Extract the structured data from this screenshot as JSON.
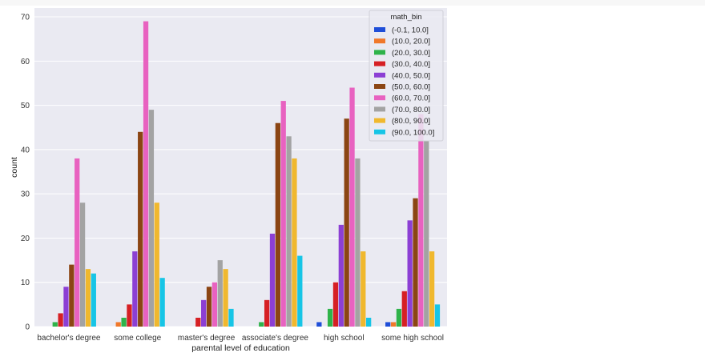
{
  "chart_data": {
    "type": "bar",
    "title": "",
    "xlabel": "parental level of education",
    "ylabel": "count",
    "ylim": [
      0,
      72
    ],
    "yticks": [
      0,
      10,
      20,
      30,
      40,
      50,
      60,
      70
    ],
    "grid": true,
    "legend_position": "top-right",
    "legend_title": "math_bin",
    "categories": [
      "bachelor's degree",
      "some college",
      "master's degree",
      "associate's degree",
      "high school",
      "some high school"
    ],
    "series": [
      {
        "name": "(-0.1, 10.0]",
        "color": "#1f4ed8",
        "values": [
          0,
          0,
          0,
          0,
          1,
          1
        ]
      },
      {
        "name": "(10.0, 20.0]",
        "color": "#f0782a",
        "values": [
          0,
          1,
          0,
          0,
          0,
          1
        ]
      },
      {
        "name": "(20.0, 30.0]",
        "color": "#2fb34a",
        "values": [
          1,
          2,
          0,
          1,
          4,
          4
        ]
      },
      {
        "name": "(30.0, 40.0]",
        "color": "#d62024",
        "values": [
          3,
          5,
          2,
          6,
          10,
          8
        ]
      },
      {
        "name": "(40.0, 50.0]",
        "color": "#8c3fd4",
        "values": [
          9,
          17,
          6,
          21,
          23,
          24
        ]
      },
      {
        "name": "(50.0, 60.0]",
        "color": "#8b4513",
        "values": [
          14,
          44,
          9,
          46,
          47,
          29
        ]
      },
      {
        "name": "(60.0, 70.0]",
        "color": "#e862c0",
        "values": [
          38,
          69,
          10,
          51,
          54,
          48
        ]
      },
      {
        "name": "(70.0, 80.0]",
        "color": "#a3a3a3",
        "values": [
          28,
          49,
          15,
          43,
          38,
          42
        ]
      },
      {
        "name": "(80.0, 90.0]",
        "color": "#f0b82e",
        "values": [
          13,
          28,
          13,
          38,
          17,
          17
        ]
      },
      {
        "name": "(90.0, 100.0]",
        "color": "#17c5e6",
        "values": [
          12,
          11,
          4,
          16,
          2,
          5
        ]
      }
    ]
  },
  "colors": {
    "plot_background": "#eaeaf2",
    "grid": "#ffffff",
    "page_background": "#ffffff"
  }
}
